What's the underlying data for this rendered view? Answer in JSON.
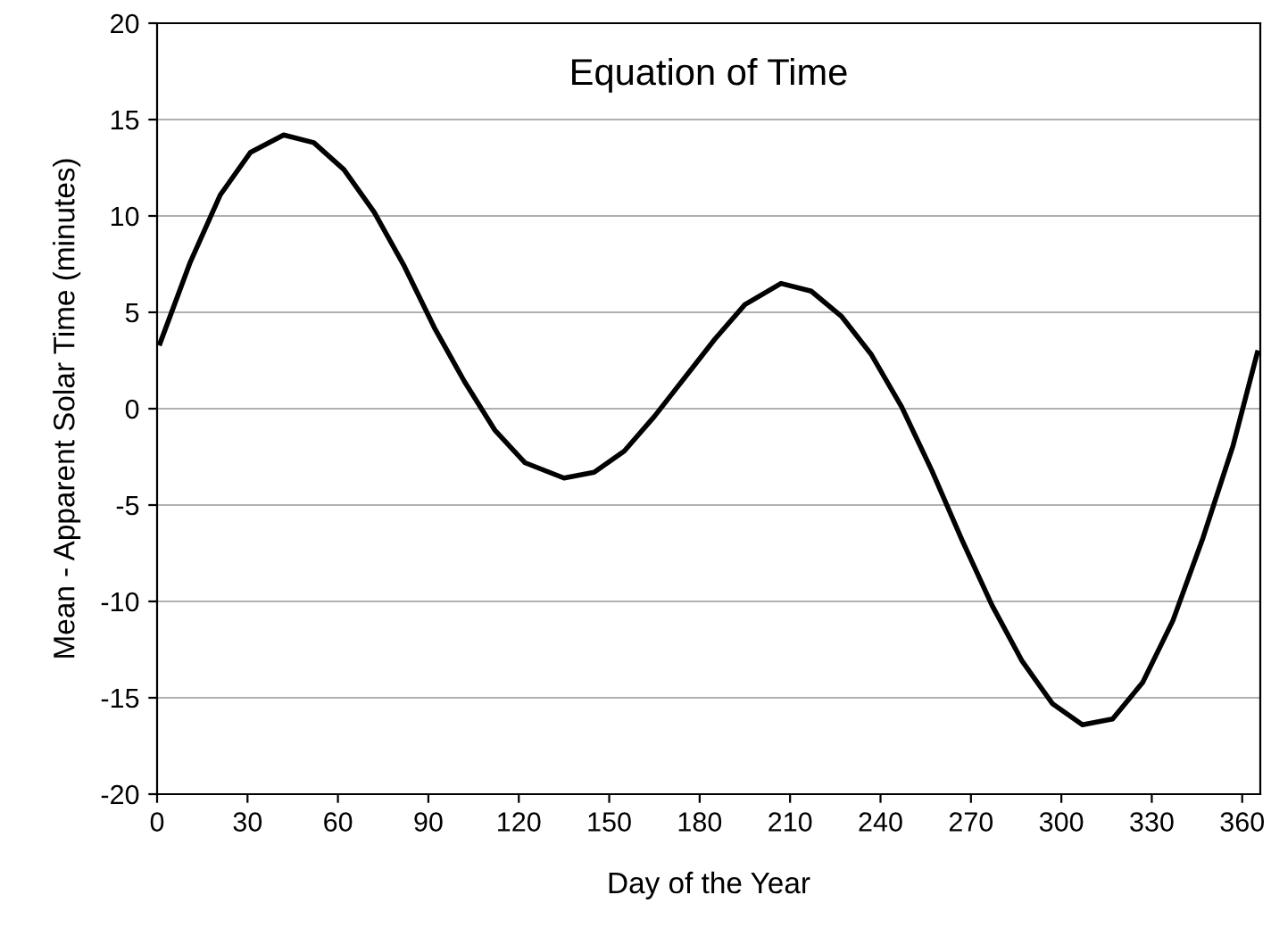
{
  "chart_data": {
    "type": "line",
    "title": "Equation of Time",
    "xlabel": "Day of the Year",
    "ylabel": "Mean - Apparent Solar Time (minutes)",
    "x": [
      1,
      11,
      21,
      31,
      42,
      52,
      62,
      72,
      82,
      92,
      102,
      112,
      122,
      135,
      145,
      155,
      165,
      175,
      185,
      195,
      207,
      217,
      227,
      237,
      247,
      257,
      267,
      277,
      287,
      297,
      307,
      317,
      327,
      337,
      347,
      357,
      365
    ],
    "series": [
      {
        "color": "#000000",
        "values": [
          3.4,
          7.6,
          11.1,
          13.3,
          14.2,
          13.8,
          12.4,
          10.2,
          7.4,
          4.2,
          1.4,
          -1.1,
          -2.8,
          -3.6,
          -3.3,
          -2.2,
          -0.4,
          1.6,
          3.6,
          5.4,
          6.5,
          6.1,
          4.8,
          2.8,
          0.1,
          -3.2,
          -6.8,
          -10.2,
          -13.1,
          -15.3,
          -16.4,
          -16.1,
          -14.2,
          -11.0,
          -6.7,
          -1.9,
          2.9
        ]
      }
    ],
    "xlim": [
      0,
      366
    ],
    "xticks": [
      0,
      30,
      60,
      90,
      120,
      150,
      180,
      210,
      240,
      270,
      300,
      330,
      360
    ],
    "ylim": [
      -20,
      20
    ],
    "yticks": [
      -20,
      -15,
      -10,
      -5,
      0,
      5,
      10,
      15,
      20
    ],
    "grid": "y",
    "marker": "none",
    "line_style": "solid",
    "legend": false
  }
}
